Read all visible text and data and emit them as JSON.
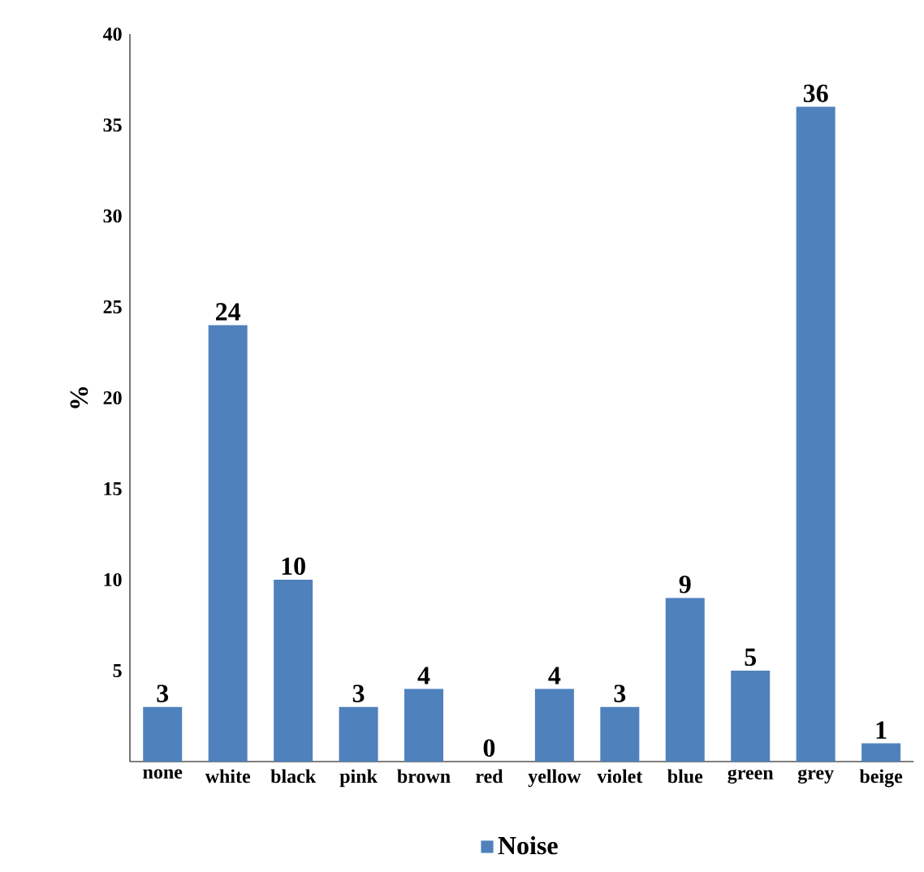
{
  "chart_data": {
    "type": "bar",
    "ylabel": "%",
    "categories": [
      "none",
      "white",
      "black",
      "pink",
      "brown",
      "red",
      "yellow",
      "violet",
      "blue",
      "green",
      "grey",
      "beige"
    ],
    "series": [
      {
        "name": "Noise",
        "color": "#4f81bd",
        "values": [
          3,
          24,
          10,
          3,
          4,
          0,
          4,
          3,
          9,
          5,
          36,
          1
        ]
      }
    ],
    "ylim": [
      0,
      40
    ],
    "yticks": [
      5,
      10,
      15,
      20,
      25,
      30,
      35,
      40
    ],
    "data_labels": true,
    "legend": "bottom",
    "grid": false
  }
}
